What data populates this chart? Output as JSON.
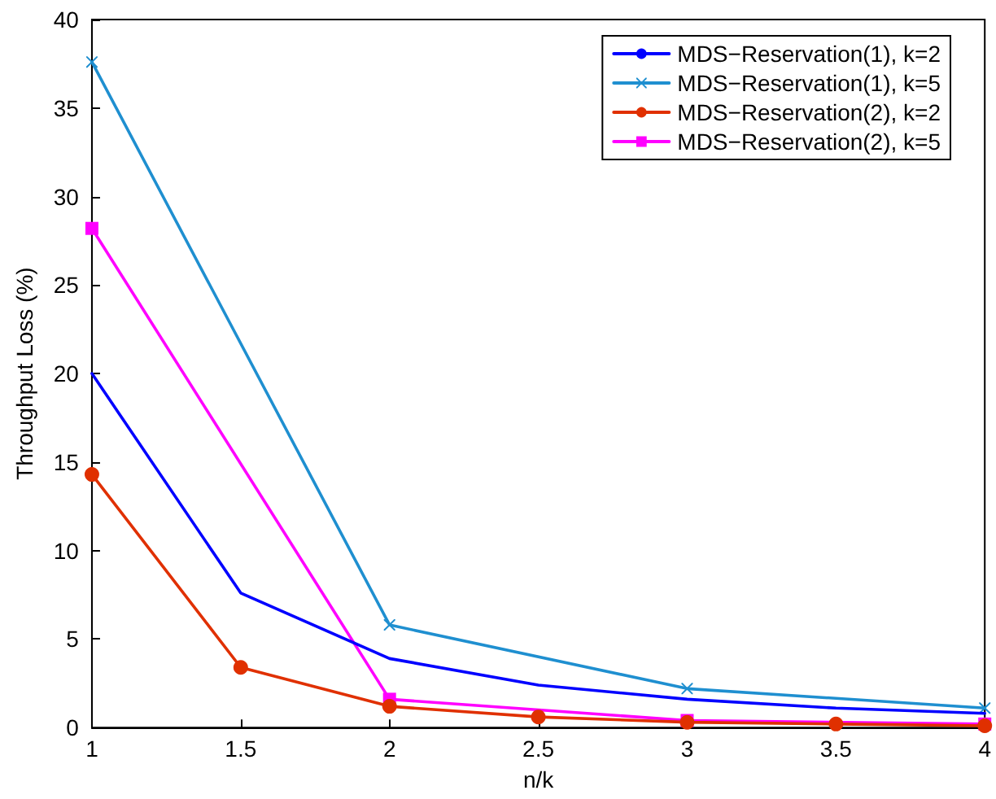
{
  "chart_data": {
    "type": "line",
    "xlabel": "n/k",
    "ylabel": "Throughput Loss (%)",
    "xlim": [
      1,
      4
    ],
    "xticks": [
      1,
      1.5,
      2,
      2.5,
      3,
      3.5,
      4
    ],
    "ylim": [
      0,
      40
    ],
    "yticks": [
      0,
      5,
      10,
      15,
      20,
      25,
      30,
      35,
      40
    ],
    "grid": false,
    "legend": "top right",
    "line_style": "solid",
    "series": [
      {
        "name": "MDS−Reservation(1), k=2",
        "color": "#0000ff",
        "marker": "none",
        "x": [
          1,
          1.5,
          2,
          2.5,
          3,
          3.5,
          4
        ],
        "values": [
          20,
          7.6,
          3.9,
          2.4,
          1.6,
          1.1,
          0.8
        ]
      },
      {
        "name": "MDS−Reservation(1), k=5",
        "color": "#1f8fd0",
        "marker": "cross",
        "x": [
          1,
          2,
          3,
          4
        ],
        "values": [
          37.6,
          5.8,
          2.2,
          1.1
        ]
      },
      {
        "name": "MDS−Reservation(2), k=2",
        "color": "#e03000",
        "marker": "circle",
        "x": [
          1,
          1.5,
          2,
          2.5,
          3,
          3.5,
          4
        ],
        "values": [
          14.3,
          3.4,
          1.2,
          0.6,
          0.3,
          0.2,
          0.1
        ]
      },
      {
        "name": "MDS−Reservation(2), k=5",
        "color": "#ff00ff",
        "marker": "square",
        "x": [
          1,
          2,
          3,
          4
        ],
        "values": [
          28.2,
          1.6,
          0.4,
          0.2
        ]
      }
    ]
  }
}
